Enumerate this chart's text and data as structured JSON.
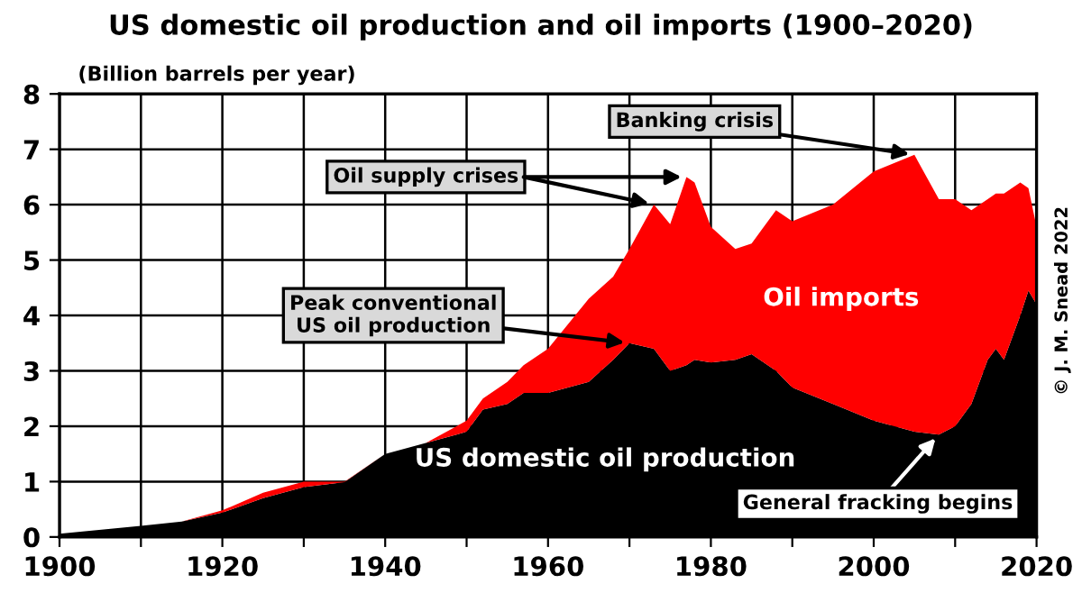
{
  "chart_data": {
    "type": "area",
    "stacked": true,
    "title": "US domestic oil production and oil imports (1900–2020)",
    "ylabel": "(Billion barrels per year)",
    "x": [
      1900,
      1910,
      1915,
      1920,
      1925,
      1930,
      1935,
      1940,
      1945,
      1950,
      1952,
      1955,
      1957,
      1960,
      1965,
      1968,
      1970,
      1973,
      1975,
      1977,
      1978,
      1980,
      1983,
      1985,
      1988,
      1990,
      1995,
      2000,
      2005,
      2008,
      2010,
      2012,
      2014,
      2015,
      2016,
      2018,
      2019,
      2020
    ],
    "series": [
      {
        "name": "US domestic oil production",
        "color": "#000000",
        "values": [
          0.06,
          0.2,
          0.28,
          0.44,
          0.7,
          0.9,
          0.99,
          1.5,
          1.7,
          1.9,
          2.3,
          2.4,
          2.6,
          2.6,
          2.8,
          3.2,
          3.5,
          3.4,
          3.0,
          3.1,
          3.2,
          3.15,
          3.2,
          3.3,
          3.0,
          2.7,
          2.4,
          2.1,
          1.9,
          1.85,
          2.0,
          2.4,
          3.2,
          3.4,
          3.2,
          4.0,
          4.45,
          4.2
        ]
      },
      {
        "name": "Oil imports",
        "color": "#ff0000",
        "values": [
          0,
          0,
          0,
          0.04,
          0.1,
          0.1,
          0.01,
          0,
          0,
          0.2,
          0.2,
          0.4,
          0.5,
          0.8,
          1.5,
          1.5,
          1.7,
          2.6,
          2.65,
          3.4,
          3.2,
          2.45,
          2.0,
          2.0,
          2.9,
          3.0,
          3.6,
          4.5,
          5.0,
          4.25,
          4.1,
          3.5,
          2.9,
          2.8,
          3.0,
          2.4,
          1.85,
          1.4
        ]
      }
    ],
    "xlim": [
      1900,
      2020
    ],
    "ylim": [
      0,
      8
    ],
    "xticks": [
      1900,
      {
        "value": 1910,
        "label": null
      },
      1920,
      {
        "value": 1930,
        "label": null
      },
      1940,
      {
        "value": 1950,
        "label": null
      },
      1960,
      {
        "value": 1970,
        "label": null
      },
      1980,
      {
        "value": 1990,
        "label": null
      },
      2000,
      {
        "value": 2010,
        "label": null
      },
      2020
    ],
    "yticks": [
      0,
      1,
      2,
      3,
      4,
      5,
      6,
      7,
      8
    ],
    "grid": true,
    "legend": false,
    "annotations": [
      {
        "text": "Oil supply crises",
        "x": 1977,
        "y": 6.5
      },
      {
        "text": "Banking crisis",
        "x": 2005,
        "y": 6.9
      },
      {
        "text": "Peak conventional\nUS oil production",
        "x": 1970,
        "y": 3.5
      },
      {
        "text": "General fracking begins",
        "x": 2008,
        "y": 1.85
      },
      "© J. M. Snead 2022"
    ]
  }
}
